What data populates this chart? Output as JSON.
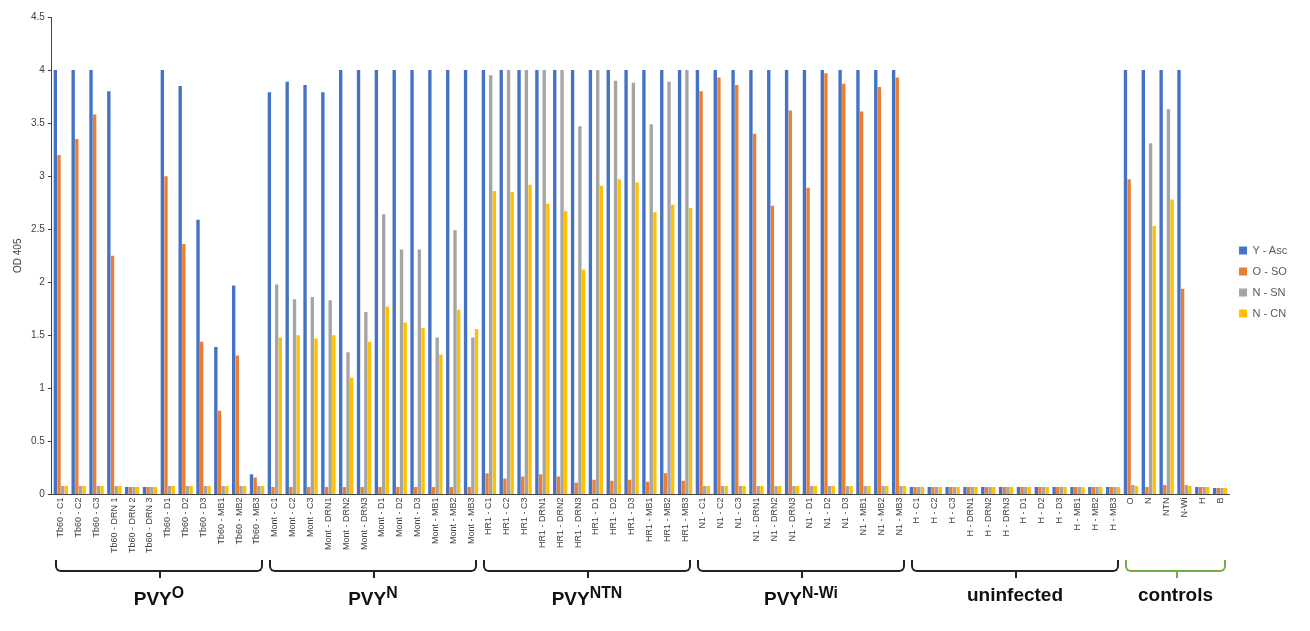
{
  "chart_data": {
    "type": "bar",
    "ylabel": "OD 405",
    "categories": [
      "Tb60 - C1",
      "Tb60 - C2",
      "Tb60 - C3",
      "Tb60 - DRN 1",
      "Tb60 - DRN 2",
      "Tb60 - DRN 3",
      "Tb60 - D1",
      "Tb60 - D2",
      "Tb60 - D3",
      "Tb60 - MB1",
      "Tb60 - MB2",
      "Tb60 - MB3",
      "Mont - C1",
      "Mont - C2",
      "Mont - C3",
      "Mont - DRN1",
      "Mont - DRN2",
      "Mont - DRN3",
      "Mont - D1",
      "Mont - D2",
      "Mont - D3",
      "Mont - MB1",
      "Mont - MB2",
      "Mont - MB3",
      "HR1 - C1",
      "HR1 - C2",
      "HR1 - C3",
      "HR1 - DRN1",
      "HR1 - DRN2",
      "HR1 - DRN3",
      "HR1 - D1",
      "HR1 - D2",
      "HR1 - D3",
      "HR1 - MB1",
      "HR1 - MB2",
      "HR1 - MB3",
      "N1 - C1",
      "N1 - C2",
      "N1 - C3",
      "N1 - DRN1",
      "N1 - DRN2",
      "N1 - DRN3",
      "N1 - D1",
      "N1 - D2",
      "N1 - D3",
      "N1 - MB1",
      "N1 - MB2",
      "N1 - MB3",
      "H - C1",
      "H - C2",
      "H - C3",
      "H - DRN1",
      "H - DRN2",
      "H - DRN3",
      "H - D1",
      "H - D2",
      "H - D3",
      "H - MB1",
      "H - MB2",
      "H - MB3",
      "O",
      "N",
      "NTN",
      "N-Wi",
      "H",
      "B"
    ],
    "series": [
      {
        "name": "Y - Asc",
        "color": "#4472c4",
        "values": [
          4,
          4,
          4,
          3.8,
          0.07,
          0.07,
          4,
          3.85,
          2.59,
          1.39,
          1.97,
          0.19,
          3.79,
          3.89,
          3.86,
          3.79,
          4,
          4,
          4,
          4,
          4,
          4,
          4,
          4,
          4,
          4,
          4,
          4,
          4,
          4,
          4,
          4,
          4,
          4,
          4,
          4,
          4,
          4,
          4,
          4,
          4,
          4,
          4,
          4,
          4,
          4,
          4,
          4,
          0.07,
          0.07,
          0.07,
          0.07,
          0.07,
          0.07,
          0.07,
          0.07,
          0.07,
          0.07,
          0.07,
          0.07,
          4,
          4,
          4,
          4,
          0.07,
          0.06
        ]
      },
      {
        "name": "O - SO",
        "color": "#ed7d31",
        "values": [
          3.2,
          3.35,
          3.58,
          2.25,
          0.07,
          0.07,
          3.0,
          2.36,
          1.44,
          0.79,
          1.31,
          0.16,
          0.07,
          0.07,
          0.07,
          0.07,
          0.07,
          0.07,
          0.07,
          0.07,
          0.07,
          0.07,
          0.07,
          0.07,
          0.2,
          0.15,
          0.17,
          0.19,
          0.17,
          0.11,
          0.14,
          0.13,
          0.14,
          0.12,
          0.2,
          0.13,
          3.8,
          3.93,
          3.86,
          3.4,
          2.72,
          3.62,
          2.89,
          3.97,
          3.87,
          3.61,
          3.84,
          3.93,
          0.07,
          0.07,
          0.07,
          0.07,
          0.07,
          0.07,
          0.07,
          0.07,
          0.07,
          0.07,
          0.07,
          0.07,
          2.97,
          0.07,
          0.09,
          1.94,
          0.07,
          0.06
        ]
      },
      {
        "name": "N - SN",
        "color": "#a5a5a5",
        "values": [
          0.08,
          0.08,
          0.08,
          0.08,
          0.07,
          0.07,
          0.08,
          0.08,
          0.08,
          0.08,
          0.08,
          0.08,
          1.98,
          1.84,
          1.86,
          1.83,
          1.34,
          1.72,
          2.64,
          2.31,
          2.31,
          1.48,
          2.49,
          1.48,
          3.95,
          4,
          4,
          4,
          4,
          3.47,
          4,
          3.9,
          3.88,
          3.49,
          3.89,
          4,
          0.08,
          0.08,
          0.08,
          0.08,
          0.08,
          0.08,
          0.08,
          0.08,
          0.08,
          0.08,
          0.08,
          0.08,
          0.07,
          0.07,
          0.07,
          0.07,
          0.07,
          0.07,
          0.07,
          0.07,
          0.07,
          0.07,
          0.07,
          0.07,
          0.09,
          3.31,
          3.63,
          0.09,
          0.07,
          0.06
        ]
      },
      {
        "name": "N - CN",
        "color": "#ffc000",
        "values": [
          0.08,
          0.08,
          0.08,
          0.08,
          0.07,
          0.07,
          0.08,
          0.08,
          0.08,
          0.08,
          0.08,
          0.08,
          1.48,
          1.5,
          1.47,
          1.5,
          1.1,
          1.44,
          1.77,
          1.62,
          1.57,
          1.32,
          1.74,
          1.56,
          2.86,
          2.85,
          2.92,
          2.74,
          2.67,
          2.12,
          2.91,
          2.97,
          2.94,
          2.66,
          2.73,
          2.7,
          0.08,
          0.08,
          0.08,
          0.08,
          0.08,
          0.08,
          0.08,
          0.08,
          0.08,
          0.08,
          0.08,
          0.08,
          0.07,
          0.07,
          0.07,
          0.07,
          0.07,
          0.07,
          0.07,
          0.07,
          0.07,
          0.07,
          0.07,
          0.07,
          0.08,
          2.53,
          2.78,
          0.08,
          0.07,
          0.06
        ]
      }
    ],
    "ylim": [
      0,
      4.5
    ],
    "yticks": [
      0,
      0.5,
      1,
      1.5,
      2,
      2.5,
      3,
      3.5,
      4,
      4.5
    ],
    "grid": false,
    "legend": "right",
    "annotations": [
      "PVY$^{O}$",
      "PVY$^{N}$",
      "PVY$^{NTN}$",
      "PVY$^{N-Wi}$",
      "uninfected",
      "controls"
    ]
  }
}
